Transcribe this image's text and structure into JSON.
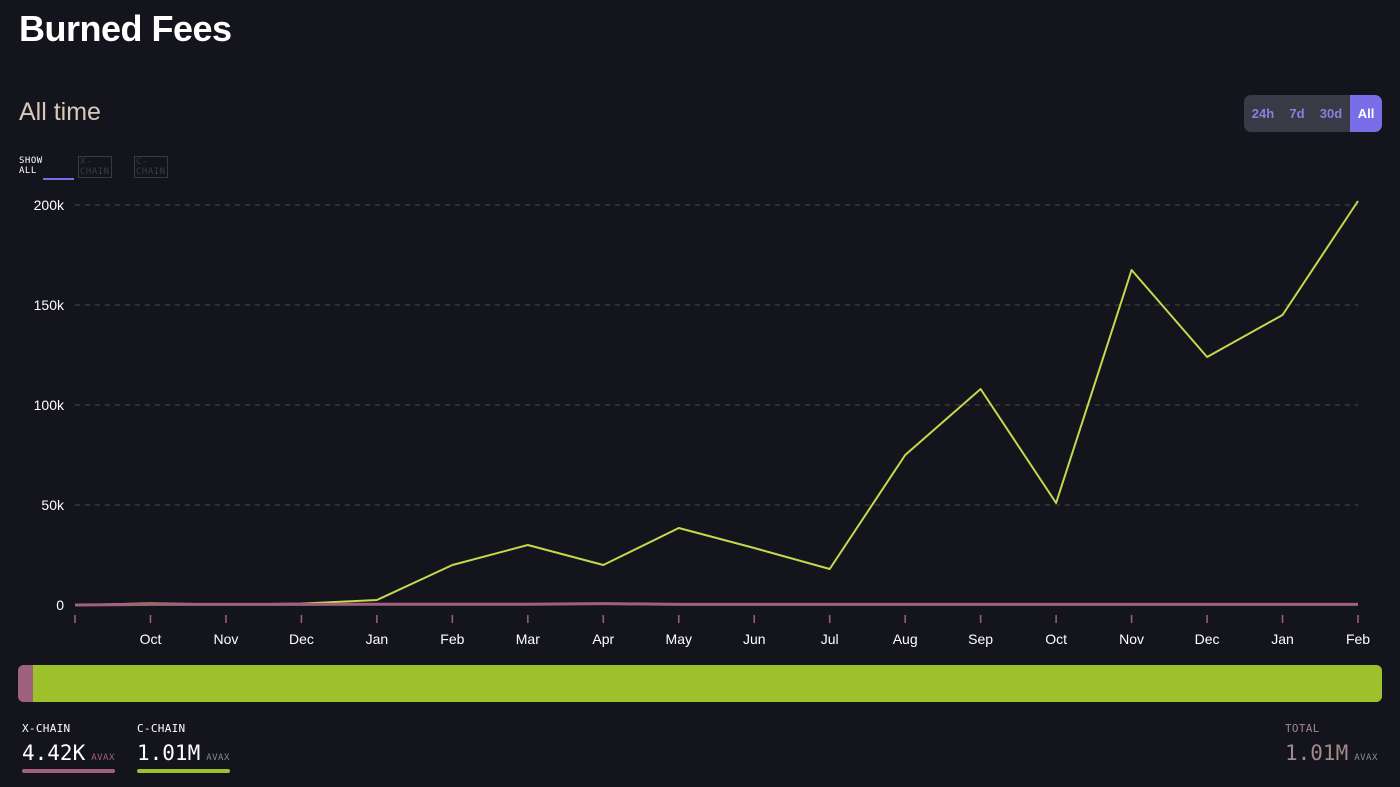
{
  "page": {
    "title": "Burned Fees",
    "period": "All time"
  },
  "range_buttons": [
    "24h",
    "7d",
    "30d",
    "All"
  ],
  "active_range": "All",
  "filters": [
    "SHOW ALL",
    "X-CHAIN",
    "C-CHAIN"
  ],
  "stats": {
    "x_chain": {
      "label": "X-CHAIN",
      "value": "4.42K",
      "unit": "AVAX"
    },
    "c_chain": {
      "label": "C-CHAIN",
      "value": "1.01M",
      "unit": "AVAX"
    },
    "total": {
      "label": "TOTAL",
      "value": "1.01M",
      "unit": "AVAX"
    }
  },
  "colors": {
    "x_chain": "#a0617e",
    "c_chain": "#c3da4c",
    "accent": "#7a6ee8",
    "background": "#14141c"
  },
  "chart_data": {
    "type": "line",
    "categories": [
      "",
      "Oct",
      "Nov",
      "Dec",
      "Jan",
      "Feb",
      "Mar",
      "Apr",
      "May",
      "Jun",
      "Jul",
      "Aug",
      "Sep",
      "Oct",
      "Nov",
      "Dec",
      "Jan",
      "Feb"
    ],
    "series": [
      {
        "name": "C-CHAIN",
        "values": [
          0,
          800,
          300,
          700,
          2500,
          20000,
          30000,
          20000,
          38500,
          28500,
          18000,
          75000,
          108000,
          51000,
          167500,
          124000,
          145000,
          202000
        ]
      },
      {
        "name": "X-CHAIN",
        "values": [
          0,
          300,
          300,
          300,
          400,
          400,
          400,
          700,
          300,
          300,
          300,
          300,
          300,
          300,
          300,
          300,
          300,
          300
        ]
      }
    ],
    "y_ticks": [
      "0",
      "50k",
      "100k",
      "150k",
      "200k"
    ],
    "y_tick_values": [
      0,
      50000,
      100000,
      150000,
      200000
    ],
    "ylim": [
      0,
      200000
    ],
    "grid": true,
    "x_chain_share": 0.0044
  }
}
